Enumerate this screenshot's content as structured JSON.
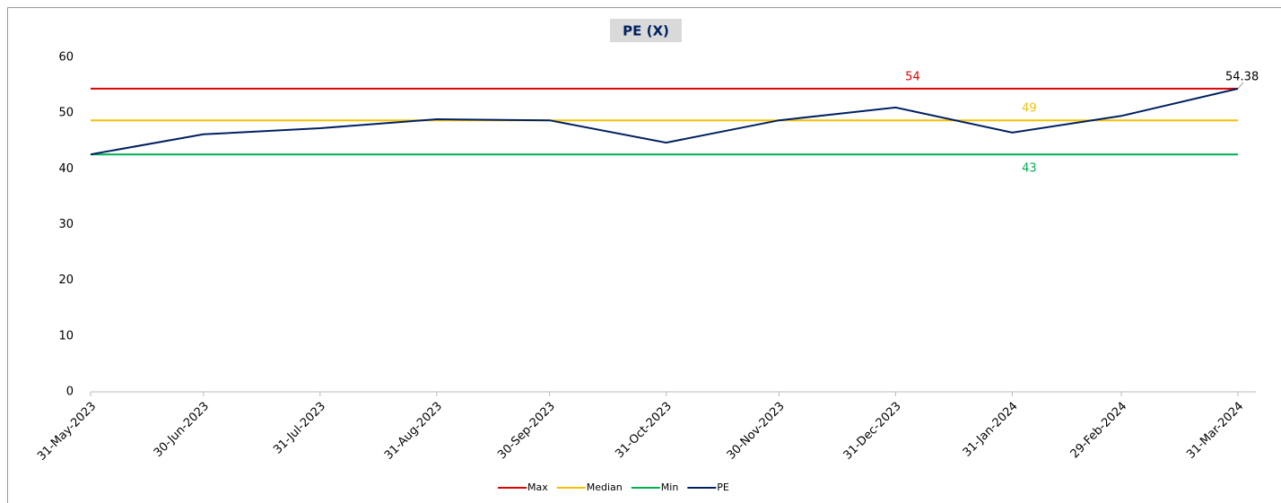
{
  "chart_data": {
    "type": "line",
    "title": "PE (X)",
    "x": [
      "31-May-2023",
      "30-Jun-2023",
      "31-Jul-2023",
      "31-Aug-2023",
      "30-Sep-2023",
      "31-Oct-2023",
      "30-Nov-2023",
      "31-Dec-2023",
      "31-Jan-2024",
      "29-Feb-2024",
      "31-Mar-2024"
    ],
    "series": [
      {
        "name": "Max",
        "color": "#e00000",
        "values": [
          54.38,
          54.38,
          54.38,
          54.38,
          54.38,
          54.38,
          54.38,
          54.38,
          54.38,
          54.38,
          54.38
        ],
        "value_labels": [
          null,
          null,
          null,
          null,
          null,
          null,
          null,
          "54",
          null,
          null,
          null
        ]
      },
      {
        "name": "Median",
        "color": "#f5c000",
        "values": [
          48.7,
          48.7,
          48.7,
          48.7,
          48.7,
          48.7,
          48.7,
          48.7,
          48.7,
          48.7,
          48.7
        ],
        "value_labels": [
          null,
          null,
          null,
          null,
          null,
          null,
          null,
          null,
          "49",
          null,
          null
        ]
      },
      {
        "name": "Min",
        "color": "#00b050",
        "values": [
          42.6,
          42.6,
          42.6,
          42.6,
          42.6,
          42.6,
          42.6,
          42.6,
          42.6,
          42.6,
          42.6
        ],
        "value_labels": [
          null,
          null,
          null,
          null,
          null,
          null,
          null,
          null,
          "43",
          null,
          null
        ]
      },
      {
        "name": "PE",
        "color": "#002060",
        "values": [
          42.6,
          46.2,
          47.3,
          48.9,
          48.7,
          44.7,
          48.7,
          51.0,
          46.5,
          49.5,
          54.38
        ],
        "value_labels": [
          null,
          null,
          null,
          null,
          null,
          null,
          null,
          null,
          null,
          null,
          "54.38"
        ]
      }
    ],
    "ylim": [
      0,
      60
    ],
    "yticks": [
      0,
      10,
      20,
      30,
      40,
      50,
      60
    ],
    "legend": "bottom"
  }
}
